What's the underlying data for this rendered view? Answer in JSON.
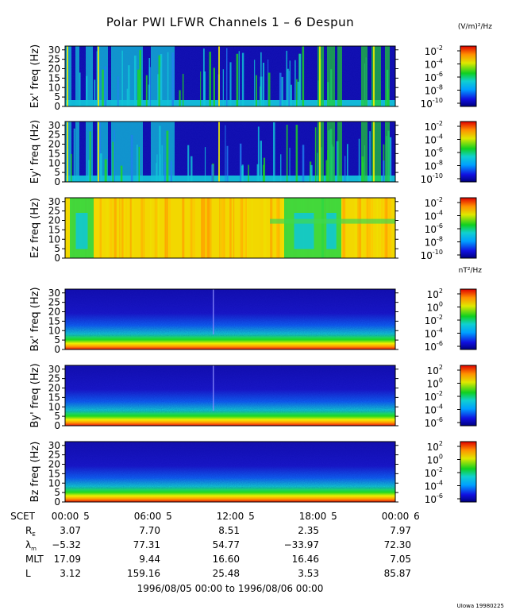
{
  "title": "Polar PWI LFWR Channels 1 – 6 Despun",
  "unit_e": "(V/m)²/Hz",
  "unit_b": "nT²/Hz",
  "credit": "UIowa 19980225",
  "date_range": "1996/08/05 00:00 to 1996/08/06 00:00",
  "colors": {
    "low": "#1b0fb8",
    "mid": "#11c8d8",
    "green": "#1ed81e",
    "high": "#ffe400",
    "max": "#e80000"
  },
  "chart_data": [
    {
      "type": "heatmap",
      "ylabel": "Ex' freq (Hz)",
      "yticks": [
        "0",
        "5",
        "10",
        "15",
        "20",
        "25",
        "30"
      ],
      "ylim": [
        0,
        32
      ],
      "colorbar": {
        "base": "10",
        "exponents": [
          "-2",
          "-4",
          "-6",
          "-8",
          "-10"
        ]
      }
    },
    {
      "type": "heatmap",
      "ylabel": "Ey' freq (Hz)",
      "yticks": [
        "0",
        "5",
        "10",
        "15",
        "20",
        "25",
        "30"
      ],
      "ylim": [
        0,
        32
      ],
      "colorbar": {
        "base": "10",
        "exponents": [
          "-2",
          "-4",
          "-6",
          "-8",
          "-10"
        ]
      }
    },
    {
      "type": "heatmap",
      "ylabel": "Ez freq (Hz)",
      "yticks": [
        "0",
        "5",
        "10",
        "15",
        "20",
        "25",
        "30"
      ],
      "ylim": [
        0,
        32
      ],
      "colorbar": {
        "base": "10",
        "exponents": [
          "-2",
          "-4",
          "-6",
          "-8",
          "-10"
        ]
      }
    },
    {
      "type": "heatmap",
      "ylabel": "Bx' freq (Hz)",
      "yticks": [
        "0",
        "5",
        "10",
        "15",
        "20",
        "25",
        "30"
      ],
      "ylim": [
        0,
        32
      ],
      "colorbar": {
        "base": "10",
        "exponents": [
          "2",
          "0",
          "-2",
          "-4",
          "-6"
        ]
      }
    },
    {
      "type": "heatmap",
      "ylabel": "By' freq (Hz)",
      "yticks": [
        "0",
        "5",
        "10",
        "15",
        "20",
        "25",
        "30"
      ],
      "ylim": [
        0,
        32
      ],
      "colorbar": {
        "base": "10",
        "exponents": [
          "2",
          "0",
          "-2",
          "-4",
          "-6"
        ]
      }
    },
    {
      "type": "heatmap",
      "ylabel": "Bz freq (Hz)",
      "yticks": [
        "0",
        "5",
        "10",
        "15",
        "20",
        "25",
        "30"
      ],
      "ylim": [
        0,
        32
      ],
      "colorbar": {
        "base": "10",
        "exponents": [
          "2",
          "0",
          "-2",
          "-4",
          "-6"
        ]
      }
    }
  ],
  "xaxis": {
    "row_label": "SCET",
    "ticks": [
      "00:00",
      "06:00",
      "12:00",
      "18:00",
      "00:00"
    ],
    "minor": [
      "5",
      "5",
      "5",
      "5",
      "6"
    ]
  },
  "ephemeris": [
    {
      "label": "R",
      "sub": "E",
      "values": [
        "3.07",
        "7.70",
        "8.51",
        "2.35",
        "7.97"
      ]
    },
    {
      "label": "λ",
      "sub": "m",
      "values": [
        "−5.32",
        "77.31",
        "54.77",
        "−33.97",
        "72.30"
      ]
    },
    {
      "label": "MLT",
      "sub": "",
      "values": [
        "17.09",
        "9.44",
        "16.60",
        "16.46",
        "7.05"
      ]
    },
    {
      "label": "L",
      "sub": "",
      "values": [
        "3.12",
        "159.16",
        "25.48",
        "3.53",
        "85.87"
      ]
    }
  ]
}
